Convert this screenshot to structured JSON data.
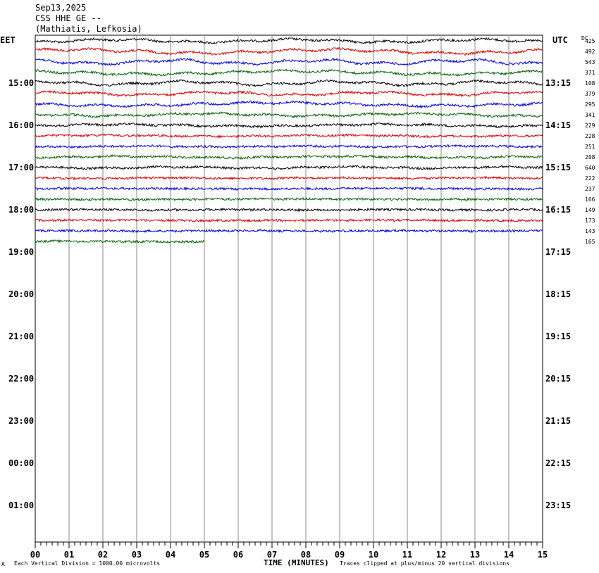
{
  "header": {
    "date": "Sep13,2025",
    "station": "CSS HHE GE --",
    "location": "(Mathiatis, Lefkosia)"
  },
  "labels": {
    "left_tz": "EET",
    "right_tz": "UTC",
    "dc": "DC",
    "x_title": "TIME (MINUTES)",
    "scale_note": "Each Vertical Division = 1000.00 microvolts",
    "clip_note": "Traces clipped at plus/minus 20 vertical divisions",
    "corner_mark": "A"
  },
  "chart_data": {
    "type": "line",
    "title": "Sep13,2025 CSS HHE GE -- (Mathiatis, Lefkosia)",
    "xlabel": "TIME (MINUTES)",
    "xlim": [
      0,
      15
    ],
    "x_ticks": [
      "00",
      "01",
      "02",
      "03",
      "04",
      "05",
      "06",
      "07",
      "08",
      "09",
      "10",
      "11",
      "12",
      "13",
      "14",
      "15"
    ],
    "left_hour_labels": [
      "15:00",
      "16:00",
      "17:00",
      "18:00",
      "19:00",
      "20:00",
      "21:00",
      "22:00",
      "23:00",
      "00:00",
      "01:00"
    ],
    "right_hour_labels": [
      "13:15",
      "14:15",
      "15:15",
      "16:15",
      "17:15",
      "18:15",
      "19:15",
      "20:15",
      "21:15",
      "22:15",
      "23:15"
    ],
    "trace_colors": [
      "#000000",
      "#dd0000",
      "#0000dd",
      "#006400"
    ],
    "rows_per_hour": 4,
    "traces": [
      {
        "dc": "425",
        "color": "#000000",
        "end_minute": 15,
        "wave": 3.0
      },
      {
        "dc": "492",
        "color": "#dd0000",
        "end_minute": 15,
        "wave": 4.0
      },
      {
        "dc": "543",
        "color": "#0000dd",
        "end_minute": 15,
        "wave": 4.0
      },
      {
        "dc": "371",
        "color": "#006400",
        "end_minute": 15,
        "wave": 3.5
      },
      {
        "dc": "108",
        "color": "#000000",
        "end_minute": 15,
        "wave": 3.5
      },
      {
        "dc": "379",
        "color": "#dd0000",
        "end_minute": 15,
        "wave": 3.0
      },
      {
        "dc": "295",
        "color": "#0000dd",
        "end_minute": 15,
        "wave": 3.5
      },
      {
        "dc": "341",
        "color": "#006400",
        "end_minute": 15,
        "wave": 2.5
      },
      {
        "dc": "229",
        "color": "#000000",
        "end_minute": 15,
        "wave": 2.0
      },
      {
        "dc": "228",
        "color": "#dd0000",
        "end_minute": 15,
        "wave": 1.2
      },
      {
        "dc": "251",
        "color": "#0000dd",
        "end_minute": 15,
        "wave": 0.8
      },
      {
        "dc": "208",
        "color": "#006400",
        "end_minute": 15,
        "wave": 1.5
      },
      {
        "dc": "640",
        "color": "#000000",
        "end_minute": 15,
        "wave": 1.5
      },
      {
        "dc": "222",
        "color": "#dd0000",
        "end_minute": 15,
        "wave": 0.6
      },
      {
        "dc": "237",
        "color": "#0000dd",
        "end_minute": 15,
        "wave": 0.5
      },
      {
        "dc": "166",
        "color": "#006400",
        "end_minute": 15,
        "wave": 0.5
      },
      {
        "dc": "149",
        "color": "#000000",
        "end_minute": 15,
        "wave": 0.5
      },
      {
        "dc": "173",
        "color": "#dd0000",
        "end_minute": 15,
        "wave": 0.5
      },
      {
        "dc": "143",
        "color": "#0000dd",
        "end_minute": 15,
        "wave": 0.5
      },
      {
        "dc": "165",
        "color": "#006400",
        "end_minute": 5,
        "wave": 0.5
      }
    ]
  }
}
